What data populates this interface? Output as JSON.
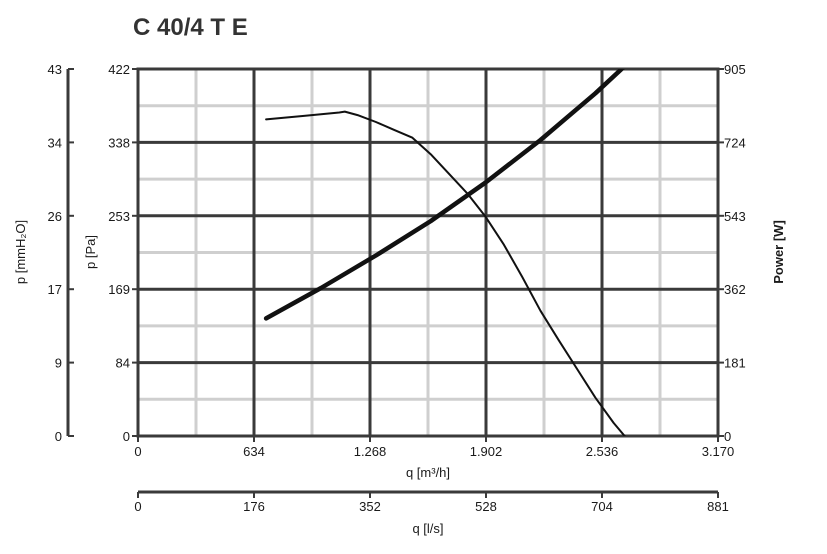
{
  "title": "C 40/4 T E",
  "chart_data": {
    "type": "line",
    "title": "C 40/4 T E",
    "xlabel": "q [m³/h]",
    "xlabel_secondary": "q [l/s]",
    "ylabel": "p [Pa]",
    "ylabel_left_outer": "p [mmH₂O]",
    "ylabel_right": "Power [W]",
    "xlim": [
      0,
      3170
    ],
    "ylim": [
      0,
      422
    ],
    "ylim_outer": [
      0,
      43
    ],
    "ylim_right": [
      0,
      905
    ],
    "xlim_secondary": [
      0,
      881
    ],
    "x_ticks": [
      "0",
      "634",
      "1.268",
      "1.902",
      "2.536",
      "3.170"
    ],
    "x_ticks_secondary": [
      "0",
      "176",
      "352",
      "528",
      "704",
      "881"
    ],
    "y_ticks": [
      "0",
      "84",
      "169",
      "253",
      "338",
      "422"
    ],
    "y_ticks_outer": [
      "0",
      "9",
      "17",
      "26",
      "34",
      "43"
    ],
    "y_ticks_right": [
      "0",
      "181",
      "362",
      "543",
      "724",
      "905"
    ],
    "grid": true,
    "series": [
      {
        "axis": "pressure",
        "x": [
          700,
          900,
          1100,
          1130,
          1200,
          1300,
          1400,
          1500,
          1600,
          1800,
          1900,
          2000,
          2100,
          2200,
          2300,
          2400,
          2500,
          2600,
          2700,
          2750
        ],
        "y": [
          364,
          368,
          372,
          373,
          369,
          361,
          352,
          343,
          324,
          279,
          252,
          220,
          183,
          144,
          110,
          77,
          44,
          15,
          -10,
          -20
        ]
      },
      {
        "axis": "power",
        "x": [
          700,
          1000,
          1300,
          1600,
          1900,
          2200,
          2500,
          2750
        ],
        "y": [
          290,
          365,
          445,
          530,
          625,
          730,
          845,
          950
        ]
      }
    ]
  }
}
